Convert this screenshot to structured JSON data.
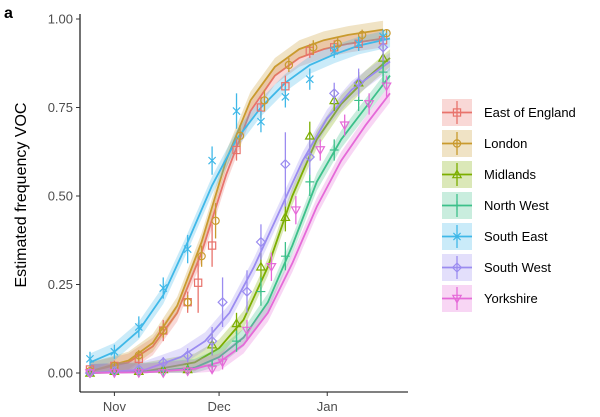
{
  "panel_label": "a",
  "colors": {
    "East of England": "#e8736c",
    "London": "#c99a2e",
    "Midlands": "#7cae00",
    "North West": "#3cc08a",
    "South East": "#3fb8e8",
    "South West": "#9b8cf0",
    "Yorkshire": "#e56ad8"
  },
  "chart_data": {
    "type": "line",
    "title": "",
    "xlabel": "",
    "ylabel": "Estimated frequency VOC",
    "x_unit": "date",
    "xlim": [
      "2020-10-23",
      "2021-01-23"
    ],
    "ylim": [
      0,
      1
    ],
    "x_ticks": [
      {
        "label": "Nov",
        "date": "2020-11-01"
      },
      {
        "label": "Dec",
        "date": "2020-12-01"
      },
      {
        "label": "Jan",
        "date": "2021-01-01"
      }
    ],
    "y_ticks": [
      "0.00",
      "0.25",
      "0.50",
      "0.75",
      "1.00"
    ],
    "y_tick_values": [
      0,
      0.25,
      0.5,
      0.75,
      1.0
    ],
    "grid": false,
    "legend_position": "right",
    "series": [
      {
        "name": "East of England",
        "marker": "square",
        "color": "#e8736c",
        "fit": [
          [
            "2020-10-25",
            0.005
          ],
          [
            "2020-11-05",
            0.03
          ],
          [
            "2020-11-12",
            0.075
          ],
          [
            "2020-11-19",
            0.17
          ],
          [
            "2020-11-26",
            0.34
          ],
          [
            "2020-12-03",
            0.56
          ],
          [
            "2020-12-10",
            0.74
          ],
          [
            "2020-12-17",
            0.84
          ],
          [
            "2020-12-24",
            0.89
          ],
          [
            "2020-12-31",
            0.915
          ],
          [
            "2021-01-07",
            0.93
          ],
          [
            "2021-01-17",
            0.945
          ]
        ],
        "points": [
          {
            "x": "2020-10-25",
            "y": 0.01,
            "lo": 0.0,
            "hi": 0.02
          },
          {
            "x": "2020-11-01",
            "y": 0.02,
            "lo": 0.01,
            "hi": 0.035
          },
          {
            "x": "2020-11-08",
            "y": 0.04,
            "lo": 0.025,
            "hi": 0.06
          },
          {
            "x": "2020-11-15",
            "y": 0.12,
            "lo": 0.09,
            "hi": 0.15
          },
          {
            "x": "2020-11-22",
            "y": 0.2,
            "lo": 0.17,
            "hi": 0.23
          },
          {
            "x": "2020-11-25",
            "y": 0.255,
            "lo": 0.17,
            "hi": 0.33
          },
          {
            "x": "2020-11-29",
            "y": 0.36,
            "lo": 0.3,
            "hi": 0.42
          },
          {
            "x": "2020-12-06",
            "y": 0.63,
            "lo": 0.6,
            "hi": 0.66
          },
          {
            "x": "2020-12-13",
            "y": 0.75,
            "lo": 0.72,
            "hi": 0.78
          },
          {
            "x": "2020-12-20",
            "y": 0.81,
            "lo": 0.78,
            "hi": 0.84
          },
          {
            "x": "2020-12-27",
            "y": 0.91,
            "lo": 0.89,
            "hi": 0.93
          },
          {
            "x": "2021-01-03",
            "y": 0.92,
            "lo": 0.9,
            "hi": 0.94
          },
          {
            "x": "2021-01-10",
            "y": 0.93,
            "lo": 0.91,
            "hi": 0.95
          },
          {
            "x": "2021-01-17",
            "y": 0.94,
            "lo": 0.92,
            "hi": 0.96
          }
        ]
      },
      {
        "name": "London",
        "marker": "circle",
        "color": "#c99a2e",
        "fit": [
          [
            "2020-10-25",
            0.005
          ],
          [
            "2020-11-05",
            0.035
          ],
          [
            "2020-11-12",
            0.085
          ],
          [
            "2020-11-19",
            0.19
          ],
          [
            "2020-11-26",
            0.37
          ],
          [
            "2020-12-03",
            0.6
          ],
          [
            "2020-12-10",
            0.77
          ],
          [
            "2020-12-17",
            0.865
          ],
          [
            "2020-12-24",
            0.915
          ],
          [
            "2020-12-31",
            0.94
          ],
          [
            "2021-01-07",
            0.955
          ],
          [
            "2021-01-17",
            0.97
          ]
        ],
        "points": [
          {
            "x": "2020-10-25",
            "y": 0.005,
            "lo": 0.0,
            "hi": 0.015
          },
          {
            "x": "2020-11-01",
            "y": 0.02,
            "lo": 0.01,
            "hi": 0.03
          },
          {
            "x": "2020-11-08",
            "y": 0.05,
            "lo": 0.035,
            "hi": 0.065
          },
          {
            "x": "2020-11-15",
            "y": 0.12,
            "lo": 0.1,
            "hi": 0.14
          },
          {
            "x": "2020-11-22",
            "y": 0.2,
            "lo": 0.18,
            "hi": 0.22
          },
          {
            "x": "2020-11-26",
            "y": 0.33,
            "lo": 0.3,
            "hi": 0.36
          },
          {
            "x": "2020-11-30",
            "y": 0.43,
            "lo": 0.38,
            "hi": 0.48
          },
          {
            "x": "2020-12-07",
            "y": 0.67,
            "lo": 0.64,
            "hi": 0.7
          },
          {
            "x": "2020-12-14",
            "y": 0.77,
            "lo": 0.74,
            "hi": 0.8
          },
          {
            "x": "2020-12-21",
            "y": 0.87,
            "lo": 0.85,
            "hi": 0.89
          },
          {
            "x": "2020-12-28",
            "y": 0.92,
            "lo": 0.9,
            "hi": 0.94
          },
          {
            "x": "2021-01-04",
            "y": 0.93,
            "lo": 0.91,
            "hi": 0.95
          },
          {
            "x": "2021-01-11",
            "y": 0.955,
            "lo": 0.94,
            "hi": 0.97
          },
          {
            "x": "2021-01-18",
            "y": 0.96,
            "lo": 0.95,
            "hi": 0.97
          }
        ]
      },
      {
        "name": "Midlands",
        "marker": "triangle-up",
        "color": "#7cae00",
        "fit": [
          [
            "2020-10-25",
            0.0
          ],
          [
            "2020-11-10",
            0.005
          ],
          [
            "2020-11-24",
            0.03
          ],
          [
            "2020-12-01",
            0.07
          ],
          [
            "2020-12-08",
            0.15
          ],
          [
            "2020-12-15",
            0.3
          ],
          [
            "2020-12-22",
            0.5
          ],
          [
            "2020-12-29",
            0.66
          ],
          [
            "2021-01-05",
            0.76
          ],
          [
            "2021-01-12",
            0.83
          ],
          [
            "2021-01-19",
            0.89
          ]
        ],
        "points": [
          {
            "x": "2020-10-25",
            "y": 0.0,
            "lo": 0.0,
            "hi": 0.01
          },
          {
            "x": "2020-11-01",
            "y": 0.005,
            "lo": 0.0,
            "hi": 0.015
          },
          {
            "x": "2020-11-08",
            "y": 0.005,
            "lo": 0.0,
            "hi": 0.015
          },
          {
            "x": "2020-11-15",
            "y": 0.01,
            "lo": 0.0,
            "hi": 0.02
          },
          {
            "x": "2020-11-22",
            "y": 0.01,
            "lo": 0.0,
            "hi": 0.025
          },
          {
            "x": "2020-11-29",
            "y": 0.08,
            "lo": 0.05,
            "hi": 0.11
          },
          {
            "x": "2020-12-06",
            "y": 0.14,
            "lo": 0.11,
            "hi": 0.17
          },
          {
            "x": "2020-12-13",
            "y": 0.3,
            "lo": 0.26,
            "hi": 0.34
          },
          {
            "x": "2020-12-20",
            "y": 0.44,
            "lo": 0.4,
            "hi": 0.48
          },
          {
            "x": "2020-12-27",
            "y": 0.67,
            "lo": 0.63,
            "hi": 0.71
          },
          {
            "x": "2021-01-03",
            "y": 0.77,
            "lo": 0.74,
            "hi": 0.8
          },
          {
            "x": "2021-01-10",
            "y": 0.82,
            "lo": 0.79,
            "hi": 0.85
          },
          {
            "x": "2021-01-17",
            "y": 0.89,
            "lo": 0.86,
            "hi": 0.92
          }
        ]
      },
      {
        "name": "North West",
        "marker": "plus",
        "color": "#3cc08a",
        "fit": [
          [
            "2020-10-25",
            0.0
          ],
          [
            "2020-11-10",
            0.003
          ],
          [
            "2020-11-24",
            0.015
          ],
          [
            "2020-12-01",
            0.045
          ],
          [
            "2020-12-08",
            0.1
          ],
          [
            "2020-12-15",
            0.2
          ],
          [
            "2020-12-22",
            0.36
          ],
          [
            "2020-12-29",
            0.54
          ],
          [
            "2021-01-05",
            0.66
          ],
          [
            "2021-01-12",
            0.75
          ],
          [
            "2021-01-19",
            0.84
          ]
        ],
        "points": [
          {
            "x": "2020-10-25",
            "y": 0.0,
            "lo": 0.0,
            "hi": 0.01
          },
          {
            "x": "2020-11-01",
            "y": 0.0,
            "lo": 0.0,
            "hi": 0.01
          },
          {
            "x": "2020-11-08",
            "y": 0.005,
            "lo": 0.0,
            "hi": 0.015
          },
          {
            "x": "2020-11-15",
            "y": 0.005,
            "lo": 0.0,
            "hi": 0.015
          },
          {
            "x": "2020-11-22",
            "y": 0.01,
            "lo": 0.0,
            "hi": 0.02
          },
          {
            "x": "2020-11-29",
            "y": 0.02,
            "lo": 0.01,
            "hi": 0.035
          },
          {
            "x": "2020-12-06",
            "y": 0.09,
            "lo": 0.06,
            "hi": 0.12
          },
          {
            "x": "2020-12-13",
            "y": 0.23,
            "lo": 0.19,
            "hi": 0.27
          },
          {
            "x": "2020-12-20",
            "y": 0.33,
            "lo": 0.29,
            "hi": 0.37
          },
          {
            "x": "2020-12-27",
            "y": 0.54,
            "lo": 0.5,
            "hi": 0.58
          },
          {
            "x": "2021-01-03",
            "y": 0.63,
            "lo": 0.6,
            "hi": 0.66
          },
          {
            "x": "2021-01-10",
            "y": 0.77,
            "lo": 0.74,
            "hi": 0.8
          },
          {
            "x": "2021-01-17",
            "y": 0.85,
            "lo": 0.82,
            "hi": 0.88
          }
        ]
      },
      {
        "name": "South East",
        "marker": "cross",
        "color": "#3fb8e8",
        "fit": [
          [
            "2020-10-25",
            0.03
          ],
          [
            "2020-11-01",
            0.06
          ],
          [
            "2020-11-08",
            0.12
          ],
          [
            "2020-11-15",
            0.22
          ],
          [
            "2020-11-22",
            0.37
          ],
          [
            "2020-11-29",
            0.53
          ],
          [
            "2020-12-06",
            0.66
          ],
          [
            "2020-12-13",
            0.75
          ],
          [
            "2020-12-20",
            0.82
          ],
          [
            "2020-12-27",
            0.87
          ],
          [
            "2021-01-03",
            0.9
          ],
          [
            "2021-01-10",
            0.925
          ],
          [
            "2021-01-19",
            0.945
          ]
        ],
        "points": [
          {
            "x": "2020-10-25",
            "y": 0.04,
            "lo": 0.02,
            "hi": 0.06
          },
          {
            "x": "2020-11-01",
            "y": 0.06,
            "lo": 0.04,
            "hi": 0.08
          },
          {
            "x": "2020-11-08",
            "y": 0.13,
            "lo": 0.1,
            "hi": 0.16
          },
          {
            "x": "2020-11-15",
            "y": 0.24,
            "lo": 0.21,
            "hi": 0.27
          },
          {
            "x": "2020-11-22",
            "y": 0.35,
            "lo": 0.31,
            "hi": 0.39
          },
          {
            "x": "2020-11-29",
            "y": 0.6,
            "lo": 0.56,
            "hi": 0.64
          },
          {
            "x": "2020-12-06",
            "y": 0.74,
            "lo": 0.69,
            "hi": 0.79
          },
          {
            "x": "2020-12-13",
            "y": 0.71,
            "lo": 0.68,
            "hi": 0.74
          },
          {
            "x": "2020-12-20",
            "y": 0.78,
            "lo": 0.75,
            "hi": 0.81
          },
          {
            "x": "2020-12-27",
            "y": 0.83,
            "lo": 0.8,
            "hi": 0.86
          },
          {
            "x": "2021-01-03",
            "y": 0.91,
            "lo": 0.89,
            "hi": 0.93
          },
          {
            "x": "2021-01-10",
            "y": 0.93,
            "lo": 0.91,
            "hi": 0.95
          },
          {
            "x": "2021-01-17",
            "y": 0.95,
            "lo": 0.93,
            "hi": 0.97
          }
        ]
      },
      {
        "name": "South West",
        "marker": "diamond",
        "color": "#9b8cf0",
        "fit": [
          [
            "2020-10-25",
            0.0
          ],
          [
            "2020-11-10",
            0.01
          ],
          [
            "2020-11-20",
            0.045
          ],
          [
            "2020-11-27",
            0.09
          ],
          [
            "2020-12-04",
            0.17
          ],
          [
            "2020-12-11",
            0.3
          ],
          [
            "2020-12-18",
            0.45
          ],
          [
            "2020-12-25",
            0.6
          ],
          [
            "2021-01-01",
            0.72
          ],
          [
            "2021-01-08",
            0.8
          ],
          [
            "2021-01-19",
            0.88
          ]
        ],
        "points": [
          {
            "x": "2020-10-25",
            "y": 0.0,
            "lo": 0.0,
            "hi": 0.01
          },
          {
            "x": "2020-11-01",
            "y": 0.005,
            "lo": 0.0,
            "hi": 0.015
          },
          {
            "x": "2020-11-08",
            "y": 0.01,
            "lo": 0.0,
            "hi": 0.02
          },
          {
            "x": "2020-11-15",
            "y": 0.03,
            "lo": 0.015,
            "hi": 0.045
          },
          {
            "x": "2020-11-22",
            "y": 0.05,
            "lo": 0.03,
            "hi": 0.07
          },
          {
            "x": "2020-11-29",
            "y": 0.09,
            "lo": 0.05,
            "hi": 0.13
          },
          {
            "x": "2020-12-02",
            "y": 0.2,
            "lo": 0.13,
            "hi": 0.27
          },
          {
            "x": "2020-12-09",
            "y": 0.23,
            "lo": 0.17,
            "hi": 0.29
          },
          {
            "x": "2020-12-13",
            "y": 0.37,
            "lo": 0.32,
            "hi": 0.42
          },
          {
            "x": "2020-12-20",
            "y": 0.59,
            "lo": 0.47,
            "hi": 0.68
          },
          {
            "x": "2020-12-27",
            "y": 0.61,
            "lo": 0.56,
            "hi": 0.66
          },
          {
            "x": "2021-01-03",
            "y": 0.79,
            "lo": 0.76,
            "hi": 0.82
          },
          {
            "x": "2021-01-10",
            "y": 0.82,
            "lo": 0.78,
            "hi": 0.86
          },
          {
            "x": "2021-01-17",
            "y": 0.92,
            "lo": 0.88,
            "hi": 0.95
          }
        ]
      },
      {
        "name": "Yorkshire",
        "marker": "triangle-down",
        "color": "#e56ad8",
        "fit": [
          [
            "2020-10-25",
            0.0
          ],
          [
            "2020-11-10",
            0.002
          ],
          [
            "2020-11-24",
            0.012
          ],
          [
            "2020-12-01",
            0.03
          ],
          [
            "2020-12-08",
            0.08
          ],
          [
            "2020-12-15",
            0.17
          ],
          [
            "2020-12-22",
            0.31
          ],
          [
            "2020-12-29",
            0.47
          ],
          [
            "2021-01-05",
            0.6
          ],
          [
            "2021-01-12",
            0.7
          ],
          [
            "2021-01-19",
            0.79
          ]
        ],
        "points": [
          {
            "x": "2020-10-25",
            "y": 0.0,
            "lo": 0.0,
            "hi": 0.01
          },
          {
            "x": "2020-11-01",
            "y": 0.0,
            "lo": 0.0,
            "hi": 0.01
          },
          {
            "x": "2020-11-08",
            "y": 0.0,
            "lo": 0.0,
            "hi": 0.01
          },
          {
            "x": "2020-11-15",
            "y": 0.0,
            "lo": 0.0,
            "hi": 0.01
          },
          {
            "x": "2020-11-22",
            "y": 0.005,
            "lo": 0.0,
            "hi": 0.015
          },
          {
            "x": "2020-11-29",
            "y": 0.01,
            "lo": 0.0,
            "hi": 0.02
          },
          {
            "x": "2020-12-02",
            "y": 0.03,
            "lo": 0.01,
            "hi": 0.05
          },
          {
            "x": "2020-12-09",
            "y": 0.12,
            "lo": 0.09,
            "hi": 0.15
          },
          {
            "x": "2020-12-16",
            "y": 0.3,
            "lo": 0.26,
            "hi": 0.34
          },
          {
            "x": "2020-12-23",
            "y": 0.46,
            "lo": 0.42,
            "hi": 0.5
          },
          {
            "x": "2020-12-30",
            "y": 0.63,
            "lo": 0.6,
            "hi": 0.66
          },
          {
            "x": "2021-01-06",
            "y": 0.7,
            "lo": 0.67,
            "hi": 0.73
          },
          {
            "x": "2021-01-13",
            "y": 0.76,
            "lo": 0.73,
            "hi": 0.79
          },
          {
            "x": "2021-01-18",
            "y": 0.81,
            "lo": 0.78,
            "hi": 0.84
          }
        ]
      }
    ]
  }
}
